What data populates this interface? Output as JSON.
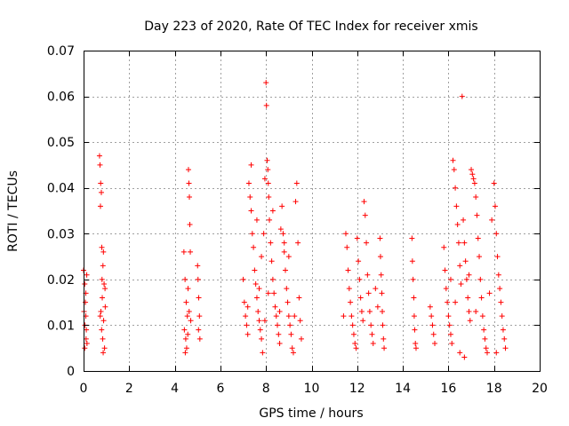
{
  "chart_data": {
    "type": "scatter",
    "title": "Day 223 of 2020, Rate Of TEC Index for receiver xmis",
    "xlabel": "GPS time / hours",
    "ylabel": "ROTI / TECUs",
    "xlim": [
      0,
      20
    ],
    "ylim": [
      0,
      0.07
    ],
    "x_ticks": [
      "0",
      "2",
      "4",
      "6",
      "8",
      "10",
      "12",
      "14",
      "16",
      "18",
      "20"
    ],
    "y_ticks": [
      "0",
      "0.01",
      "0.02",
      "0.03",
      "0.04",
      "0.05",
      "0.06",
      "0.07"
    ],
    "grid": true,
    "marker": "plus",
    "color": "#ff0000",
    "series": [
      {
        "points": [
          [
            0.0,
            0.022
          ],
          [
            0.05,
            0.019
          ],
          [
            0.08,
            0.015
          ],
          [
            0.1,
            0.012
          ],
          [
            0.12,
            0.009
          ],
          [
            0.15,
            0.006
          ],
          [
            0.05,
            0.005
          ],
          [
            0.1,
            0.017
          ],
          [
            0.02,
            0.013
          ],
          [
            0.14,
            0.021
          ],
          [
            0.06,
            0.01
          ],
          [
            0.11,
            0.007
          ],
          [
            0.7,
            0.047
          ],
          [
            0.72,
            0.045
          ],
          [
            0.75,
            0.041
          ],
          [
            0.78,
            0.039
          ],
          [
            0.74,
            0.036
          ],
          [
            0.8,
            0.027
          ],
          [
            0.85,
            0.023
          ],
          [
            0.9,
            0.019
          ],
          [
            0.82,
            0.016
          ],
          [
            0.76,
            0.013
          ],
          [
            0.88,
            0.011
          ],
          [
            0.79,
            0.009
          ],
          [
            0.84,
            0.007
          ],
          [
            0.92,
            0.005
          ],
          [
            0.86,
            0.004
          ],
          [
            0.73,
            0.012
          ],
          [
            0.95,
            0.014
          ],
          [
            0.81,
            0.02
          ],
          [
            0.87,
            0.026
          ],
          [
            0.94,
            0.018
          ],
          [
            4.4,
            0.026
          ],
          [
            4.45,
            0.02
          ],
          [
            4.5,
            0.015
          ],
          [
            4.55,
            0.012
          ],
          [
            4.42,
            0.009
          ],
          [
            4.48,
            0.007
          ],
          [
            4.52,
            0.005
          ],
          [
            4.6,
            0.044
          ],
          [
            4.62,
            0.041
          ],
          [
            4.64,
            0.038
          ],
          [
            4.66,
            0.032
          ],
          [
            4.68,
            0.026
          ],
          [
            4.58,
            0.018
          ],
          [
            4.63,
            0.013
          ],
          [
            4.7,
            0.011
          ],
          [
            4.57,
            0.008
          ],
          [
            4.46,
            0.004
          ],
          [
            5.0,
            0.023
          ],
          [
            5.02,
            0.02
          ],
          [
            5.05,
            0.016
          ],
          [
            5.08,
            0.012
          ],
          [
            5.04,
            0.009
          ],
          [
            5.1,
            0.007
          ],
          [
            7.0,
            0.02
          ],
          [
            7.05,
            0.015
          ],
          [
            7.1,
            0.012
          ],
          [
            7.15,
            0.01
          ],
          [
            7.2,
            0.008
          ],
          [
            7.25,
            0.041
          ],
          [
            7.3,
            0.038
          ],
          [
            7.35,
            0.035
          ],
          [
            7.4,
            0.03
          ],
          [
            7.45,
            0.027
          ],
          [
            7.5,
            0.022
          ],
          [
            7.55,
            0.019
          ],
          [
            7.6,
            0.016
          ],
          [
            7.65,
            0.013
          ],
          [
            7.7,
            0.011
          ],
          [
            7.75,
            0.009
          ],
          [
            7.8,
            0.007
          ],
          [
            7.85,
            0.004
          ],
          [
            7.9,
            0.03
          ],
          [
            7.95,
            0.042
          ],
          [
            8.0,
            0.063
          ],
          [
            8.02,
            0.058
          ],
          [
            8.05,
            0.046
          ],
          [
            8.08,
            0.044
          ],
          [
            8.1,
            0.041
          ],
          [
            8.12,
            0.038
          ],
          [
            8.15,
            0.033
          ],
          [
            8.2,
            0.028
          ],
          [
            8.25,
            0.024
          ],
          [
            8.3,
            0.02
          ],
          [
            8.35,
            0.017
          ],
          [
            8.4,
            0.014
          ],
          [
            8.45,
            0.012
          ],
          [
            8.5,
            0.01
          ],
          [
            8.55,
            0.008
          ],
          [
            8.6,
            0.006
          ],
          [
            8.65,
            0.031
          ],
          [
            8.7,
            0.036
          ],
          [
            8.75,
            0.03
          ],
          [
            8.8,
            0.026
          ],
          [
            8.85,
            0.022
          ],
          [
            8.9,
            0.018
          ],
          [
            8.95,
            0.015
          ],
          [
            9.0,
            0.012
          ],
          [
            9.05,
            0.01
          ],
          [
            9.1,
            0.008
          ],
          [
            9.15,
            0.005
          ],
          [
            9.2,
            0.004
          ],
          [
            9.3,
            0.037
          ],
          [
            9.35,
            0.041
          ],
          [
            9.4,
            0.028
          ],
          [
            9.45,
            0.016
          ],
          [
            9.5,
            0.011
          ],
          [
            9.55,
            0.007
          ],
          [
            7.35,
            0.045
          ],
          [
            7.6,
            0.033
          ],
          [
            7.8,
            0.025
          ],
          [
            8.3,
            0.035
          ],
          [
            8.8,
            0.028
          ],
          [
            9.0,
            0.025
          ],
          [
            8.1,
            0.017
          ],
          [
            7.7,
            0.018
          ],
          [
            7.2,
            0.014
          ],
          [
            8.6,
            0.013
          ],
          [
            9.25,
            0.012
          ],
          [
            7.95,
            0.011
          ],
          [
            11.5,
            0.03
          ],
          [
            11.55,
            0.027
          ],
          [
            11.6,
            0.022
          ],
          [
            11.65,
            0.018
          ],
          [
            11.7,
            0.015
          ],
          [
            11.75,
            0.012
          ],
          [
            11.8,
            0.01
          ],
          [
            11.85,
            0.008
          ],
          [
            11.9,
            0.006
          ],
          [
            11.95,
            0.005
          ],
          [
            12.0,
            0.029
          ],
          [
            12.05,
            0.024
          ],
          [
            12.1,
            0.02
          ],
          [
            12.15,
            0.016
          ],
          [
            12.2,
            0.013
          ],
          [
            12.25,
            0.011
          ],
          [
            12.3,
            0.037
          ],
          [
            12.35,
            0.034
          ],
          [
            12.4,
            0.028
          ],
          [
            12.45,
            0.021
          ],
          [
            12.5,
            0.017
          ],
          [
            12.55,
            0.013
          ],
          [
            12.6,
            0.01
          ],
          [
            12.65,
            0.008
          ],
          [
            12.7,
            0.006
          ],
          [
            13.0,
            0.029
          ],
          [
            13.02,
            0.025
          ],
          [
            13.05,
            0.021
          ],
          [
            13.08,
            0.017
          ],
          [
            13.1,
            0.013
          ],
          [
            13.12,
            0.01
          ],
          [
            13.15,
            0.007
          ],
          [
            13.18,
            0.005
          ],
          [
            11.4,
            0.012
          ],
          [
            12.8,
            0.018
          ],
          [
            12.9,
            0.014
          ],
          [
            14.4,
            0.029
          ],
          [
            14.42,
            0.024
          ],
          [
            14.45,
            0.02
          ],
          [
            14.48,
            0.016
          ],
          [
            14.5,
            0.012
          ],
          [
            14.52,
            0.009
          ],
          [
            14.55,
            0.006
          ],
          [
            14.58,
            0.005
          ],
          [
            15.2,
            0.014
          ],
          [
            15.25,
            0.012
          ],
          [
            15.3,
            0.01
          ],
          [
            15.35,
            0.008
          ],
          [
            15.4,
            0.006
          ],
          [
            15.8,
            0.027
          ],
          [
            15.85,
            0.022
          ],
          [
            15.9,
            0.018
          ],
          [
            15.95,
            0.015
          ],
          [
            16.0,
            0.012
          ],
          [
            16.05,
            0.01
          ],
          [
            16.1,
            0.008
          ],
          [
            16.15,
            0.006
          ],
          [
            16.2,
            0.046
          ],
          [
            16.25,
            0.044
          ],
          [
            16.3,
            0.04
          ],
          [
            16.35,
            0.036
          ],
          [
            16.4,
            0.032
          ],
          [
            16.45,
            0.028
          ],
          [
            16.5,
            0.023
          ],
          [
            16.55,
            0.019
          ],
          [
            16.6,
            0.06
          ],
          [
            16.65,
            0.033
          ],
          [
            16.7,
            0.028
          ],
          [
            16.75,
            0.024
          ],
          [
            16.8,
            0.02
          ],
          [
            16.85,
            0.016
          ],
          [
            16.9,
            0.013
          ],
          [
            16.95,
            0.011
          ],
          [
            17.0,
            0.044
          ],
          [
            17.05,
            0.043
          ],
          [
            17.1,
            0.042
          ],
          [
            17.15,
            0.041
          ],
          [
            17.2,
            0.038
          ],
          [
            17.25,
            0.034
          ],
          [
            17.3,
            0.029
          ],
          [
            17.35,
            0.025
          ],
          [
            17.4,
            0.02
          ],
          [
            17.45,
            0.016
          ],
          [
            17.5,
            0.012
          ],
          [
            17.55,
            0.009
          ],
          [
            17.6,
            0.007
          ],
          [
            17.65,
            0.005
          ],
          [
            17.7,
            0.004
          ],
          [
            16.5,
            0.004
          ],
          [
            16.7,
            0.003
          ],
          [
            17.9,
            0.033
          ],
          [
            18.0,
            0.041
          ],
          [
            18.05,
            0.036
          ],
          [
            18.1,
            0.03
          ],
          [
            18.15,
            0.025
          ],
          [
            18.2,
            0.021
          ],
          [
            18.25,
            0.018
          ],
          [
            18.3,
            0.015
          ],
          [
            18.35,
            0.012
          ],
          [
            18.4,
            0.009
          ],
          [
            18.45,
            0.007
          ],
          [
            18.5,
            0.005
          ],
          [
            18.1,
            0.004
          ],
          [
            16.3,
            0.015
          ],
          [
            17.2,
            0.013
          ],
          [
            16.9,
            0.021
          ],
          [
            17.8,
            0.017
          ],
          [
            16.1,
            0.02
          ]
        ]
      }
    ]
  }
}
